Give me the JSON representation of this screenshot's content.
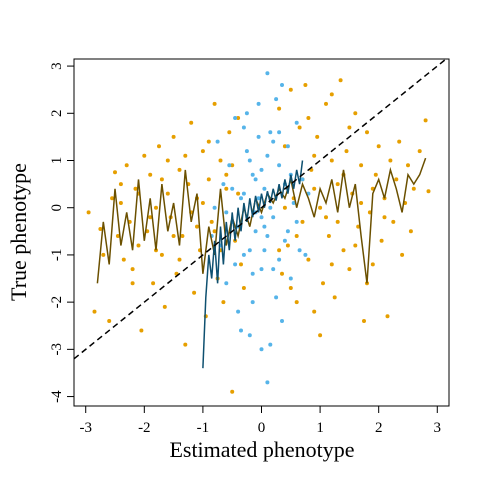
{
  "chart_data": {
    "type": "scatter",
    "title": "",
    "xlabel": "Estimated phenotype",
    "ylabel": "True phenotype",
    "xlim": [
      -3.2,
      3.2
    ],
    "ylim": [
      -4.2,
      3.15
    ],
    "x_ticks": [
      "-3",
      "-2",
      "-1",
      "0",
      "1",
      "2",
      "3"
    ],
    "y_ticks": [
      "-4",
      "-3",
      "-2",
      "-1",
      "0",
      "1",
      "2",
      "3"
    ],
    "grid": false,
    "legend": "none",
    "reference_line": {
      "style": "dashed",
      "color": "#000000",
      "slope": 1,
      "intercept": 0
    },
    "series": [
      {
        "kind": "points",
        "color": "#E69F00",
        "points": [
          [
            -2.95,
            -0.1
          ],
          [
            -2.85,
            -2.2
          ],
          [
            -2.75,
            -0.45
          ],
          [
            -2.7,
            -1.0
          ],
          [
            -2.6,
            -2.4
          ],
          [
            -2.55,
            0.2
          ],
          [
            -2.5,
            0.75
          ],
          [
            -2.45,
            -0.6
          ],
          [
            -2.4,
            0.5
          ],
          [
            -2.35,
            -1.1
          ],
          [
            -2.3,
            0.9
          ],
          [
            -2.25,
            -0.3
          ],
          [
            -2.2,
            -1.3
          ],
          [
            -2.15,
            0.4
          ],
          [
            -2.1,
            -0.8
          ],
          [
            -2.05,
            -2.6
          ],
          [
            -2.0,
            1.1
          ],
          [
            -1.95,
            -0.5
          ],
          [
            -1.9,
            0.7
          ],
          [
            -1.85,
            -1.6
          ],
          [
            -1.8,
            0.0
          ],
          [
            -1.75,
            1.3
          ],
          [
            -1.7,
            -1.0
          ],
          [
            -1.65,
            -2.1
          ],
          [
            -1.6,
            0.3
          ],
          [
            -1.55,
            -0.2
          ],
          [
            -1.5,
            1.5
          ],
          [
            -1.45,
            -1.4
          ],
          [
            -1.4,
            0.8
          ],
          [
            -1.35,
            -0.6
          ],
          [
            -1.3,
            -2.9
          ],
          [
            -1.25,
            0.5
          ],
          [
            -1.2,
            1.8
          ],
          [
            -1.15,
            -1.8
          ],
          [
            -1.1,
            0.2
          ],
          [
            -1.05,
            -0.9
          ],
          [
            -1.0,
            1.2
          ],
          [
            -0.95,
            -2.3
          ],
          [
            -0.9,
            0.6
          ],
          [
            -0.85,
            -0.3
          ],
          [
            -0.8,
            2.2
          ],
          [
            -0.75,
            -1.5
          ],
          [
            -0.7,
            1.0
          ],
          [
            -0.65,
            -2.0
          ],
          [
            -0.6,
            0.4
          ],
          [
            -0.55,
            1.6
          ],
          [
            -0.5,
            -3.9
          ],
          [
            -0.45,
            -0.7
          ],
          [
            -0.4,
            1.9
          ],
          [
            -0.35,
            -1.2
          ],
          [
            -2.4,
            0.1
          ],
          [
            -2.1,
            0.3
          ],
          [
            -1.9,
            -0.2
          ],
          [
            -1.7,
            0.6
          ],
          [
            -1.5,
            -0.6
          ],
          [
            -1.3,
            1.1
          ],
          [
            -1.1,
            -0.4
          ],
          [
            -0.9,
            1.4
          ],
          [
            -0.7,
            -0.9
          ],
          [
            -0.5,
            0.9
          ],
          [
            -1.2,
            -0.1
          ],
          [
            -1.0,
            0.1
          ],
          [
            -0.8,
            -0.5
          ],
          [
            -0.6,
            0.7
          ],
          [
            -1.6,
            1.0
          ],
          [
            -1.4,
            -1.1
          ],
          [
            -2.2,
            -1.6
          ],
          [
            -1.8,
            -0.9
          ],
          [
            -0.4,
            0.3
          ],
          [
            -0.3,
            -1.7
          ],
          [
            0.3,
            2.1
          ],
          [
            0.35,
            -1.4
          ],
          [
            0.4,
            1.3
          ],
          [
            0.45,
            -0.8
          ],
          [
            0.5,
            2.5
          ],
          [
            0.55,
            0.2
          ],
          [
            0.6,
            -2.0
          ],
          [
            0.65,
            1.7
          ],
          [
            0.7,
            -0.3
          ],
          [
            0.75,
            2.6
          ],
          [
            0.8,
            -1.1
          ],
          [
            0.85,
            0.8
          ],
          [
            0.9,
            -2.2
          ],
          [
            0.95,
            1.5
          ],
          [
            1.0,
            0.0
          ],
          [
            1.05,
            -1.6
          ],
          [
            1.1,
            2.2
          ],
          [
            1.15,
            -0.6
          ],
          [
            1.2,
            1.0
          ],
          [
            1.25,
            -1.9
          ],
          [
            1.3,
            0.5
          ],
          [
            1.35,
            2.7
          ],
          [
            1.4,
            -0.9
          ],
          [
            1.45,
            1.2
          ],
          [
            1.5,
            -1.3
          ],
          [
            1.55,
            0.3
          ],
          [
            1.6,
            2.0
          ],
          [
            1.65,
            -0.4
          ],
          [
            1.7,
            0.9
          ],
          [
            1.75,
            -2.4
          ],
          [
            1.8,
            1.6
          ],
          [
            1.85,
            -0.1
          ],
          [
            1.9,
            -1.2
          ],
          [
            1.95,
            0.7
          ],
          [
            2.0,
            1.3
          ],
          [
            2.05,
            -0.7
          ],
          [
            2.1,
            0.2
          ],
          [
            2.15,
            -2.3
          ],
          [
            2.2,
            1.0
          ],
          [
            2.25,
            -0.3
          ],
          [
            2.3,
            0.6
          ],
          [
            2.35,
            1.4
          ],
          [
            2.4,
            -1.0
          ],
          [
            2.45,
            0.1
          ],
          [
            2.5,
            0.9
          ],
          [
            2.55,
            -0.5
          ],
          [
            2.6,
            0.4
          ],
          [
            2.7,
            1.2
          ],
          [
            2.8,
            1.85
          ],
          [
            2.85,
            0.35
          ],
          [
            1.2,
            2.4
          ],
          [
            0.9,
            0.4
          ],
          [
            1.1,
            -0.2
          ],
          [
            1.4,
            0.7
          ],
          [
            1.6,
            -0.8
          ],
          [
            0.7,
            0.6
          ],
          [
            0.8,
            1.9
          ],
          [
            1.0,
            -2.7
          ],
          [
            1.3,
            -0.3
          ],
          [
            1.5,
            1.7
          ],
          [
            0.6,
            -0.6
          ],
          [
            0.9,
            1.1
          ],
          [
            1.7,
            0.1
          ],
          [
            1.9,
            0.4
          ],
          [
            2.1,
            -0.2
          ],
          [
            1.2,
            -1.2
          ],
          [
            0.5,
            -1.7
          ],
          [
            0.4,
            0.0
          ],
          [
            0.3,
            -0.9
          ],
          [
            1.8,
            -1.6
          ]
        ]
      },
      {
        "kind": "points",
        "color": "#56B4E9",
        "points": [
          [
            -0.75,
            1.4
          ],
          [
            -0.7,
            -0.8
          ],
          [
            -0.65,
            0.5
          ],
          [
            -0.6,
            -1.6
          ],
          [
            -0.55,
            0.9
          ],
          [
            -0.5,
            -0.3
          ],
          [
            -0.45,
            1.9
          ],
          [
            -0.4,
            -2.2
          ],
          [
            -0.35,
            0.2
          ],
          [
            -0.3,
            -1.0
          ],
          [
            -0.25,
            1.2
          ],
          [
            -0.2,
            -2.7
          ],
          [
            -0.15,
            0.7
          ],
          [
            -0.1,
            -0.5
          ],
          [
            -0.05,
            2.2
          ],
          [
            0.0,
            -1.3
          ],
          [
            0.05,
            0.4
          ],
          [
            0.1,
            -3.7
          ],
          [
            0.15,
            1.6
          ],
          [
            0.2,
            -0.2
          ],
          [
            0.25,
            -1.9
          ],
          [
            0.3,
            0.9
          ],
          [
            0.35,
            2.6
          ],
          [
            0.4,
            -0.7
          ],
          [
            0.45,
            1.3
          ],
          [
            0.5,
            -1.5
          ],
          [
            0.55,
            0.1
          ],
          [
            0.6,
            1.8
          ],
          [
            0.65,
            -0.9
          ],
          [
            0.7,
            0.6
          ],
          [
            -0.3,
            0.3
          ],
          [
            -0.2,
            1.0
          ],
          [
            -0.1,
            -0.1
          ],
          [
            0.0,
            0.8
          ],
          [
            0.1,
            -0.6
          ],
          [
            0.2,
            1.4
          ],
          [
            0.3,
            -1.1
          ],
          [
            -0.4,
            -0.4
          ],
          [
            0.4,
            0.5
          ],
          [
            0.0,
            -0.2
          ],
          [
            -0.05,
            1.5
          ],
          [
            0.05,
            -0.9
          ],
          [
            -0.15,
            -1.4
          ],
          [
            0.15,
            0.0
          ],
          [
            -0.25,
            2.0
          ],
          [
            0.25,
            2.3
          ],
          [
            0.1,
            2.85
          ],
          [
            -0.35,
            -2.6
          ],
          [
            0.35,
            -2.4
          ],
          [
            0.0,
            -3.0
          ],
          [
            -0.2,
            -0.9
          ],
          [
            0.2,
            -1.3
          ],
          [
            -0.1,
            0.6
          ],
          [
            0.1,
            1.1
          ],
          [
            -0.5,
            0.4
          ],
          [
            0.5,
            0.7
          ],
          [
            -0.6,
            -0.1
          ],
          [
            0.6,
            -0.3
          ],
          [
            -0.45,
            -1.2
          ],
          [
            0.45,
            -0.5
          ],
          [
            -0.3,
            1.7
          ],
          [
            0.3,
            1.6
          ],
          [
            -0.15,
            -2.0
          ],
          [
            0.15,
            -2.9
          ],
          [
            -0.05,
            0.2
          ],
          [
            0.05,
            -0.4
          ],
          [
            -0.8,
            0.0
          ],
          [
            -0.85,
            -0.6
          ],
          [
            0.8,
            0.3
          ],
          [
            0.75,
            -1.0
          ]
        ]
      },
      {
        "kind": "line",
        "color": "#6B5000",
        "points": [
          [
            -2.8,
            -1.6
          ],
          [
            -2.7,
            -0.3
          ],
          [
            -2.6,
            -1.2
          ],
          [
            -2.5,
            0.4
          ],
          [
            -2.4,
            -0.8
          ],
          [
            -2.3,
            -0.1
          ],
          [
            -2.2,
            -0.9
          ],
          [
            -2.1,
            0.6
          ],
          [
            -2.0,
            -0.7
          ],
          [
            -1.9,
            0.2
          ],
          [
            -1.8,
            -0.9
          ],
          [
            -1.7,
            0.5
          ],
          [
            -1.6,
            -0.5
          ],
          [
            -1.5,
            0.1
          ],
          [
            -1.4,
            -0.8
          ],
          [
            -1.3,
            0.8
          ],
          [
            -1.2,
            -0.3
          ],
          [
            -1.1,
            0.3
          ],
          [
            -1.0,
            -1.4
          ],
          [
            -0.9,
            -0.4
          ],
          [
            -0.8,
            -1.0
          ],
          [
            -0.7,
            0.4
          ],
          [
            -0.6,
            -0.8
          ],
          [
            -0.5,
            -0.2
          ],
          [
            -0.4,
            -0.6
          ],
          [
            -0.3,
            0.0
          ],
          [
            -0.2,
            -0.4
          ],
          [
            -0.1,
            0.2
          ],
          [
            0.0,
            -0.1
          ],
          [
            0.1,
            0.3
          ],
          [
            0.2,
            0.1
          ],
          [
            0.3,
            0.4
          ],
          [
            0.4,
            0.2
          ],
          [
            0.5,
            0.6
          ],
          [
            0.6,
            0.0
          ],
          [
            0.7,
            0.5
          ],
          [
            0.8,
            0.2
          ],
          [
            0.9,
            -0.2
          ],
          [
            1.0,
            0.4
          ],
          [
            1.1,
            0.1
          ],
          [
            1.2,
            0.6
          ],
          [
            1.3,
            -0.1
          ],
          [
            1.4,
            0.8
          ],
          [
            1.5,
            0.0
          ],
          [
            1.6,
            0.5
          ],
          [
            1.7,
            -0.6
          ],
          [
            1.8,
            -1.6
          ],
          [
            1.9,
            0.3
          ],
          [
            2.0,
            0.6
          ],
          [
            2.1,
            0.2
          ],
          [
            2.2,
            0.8
          ],
          [
            2.3,
            0.4
          ],
          [
            2.4,
            -0.1
          ],
          [
            2.5,
            0.7
          ],
          [
            2.6,
            0.5
          ],
          [
            2.7,
            0.7
          ],
          [
            2.8,
            1.05
          ]
        ]
      },
      {
        "kind": "line",
        "color": "#0E5070",
        "points": [
          [
            -1.0,
            -3.4
          ],
          [
            -0.95,
            -1.9
          ],
          [
            -0.9,
            -1.0
          ],
          [
            -0.85,
            -1.5
          ],
          [
            -0.8,
            -0.7
          ],
          [
            -0.75,
            -1.6
          ],
          [
            -0.7,
            -0.4
          ],
          [
            -0.65,
            -1.2
          ],
          [
            -0.6,
            -0.3
          ],
          [
            -0.55,
            -0.9
          ],
          [
            -0.5,
            -0.1
          ],
          [
            -0.45,
            -0.7
          ],
          [
            -0.4,
            0.0
          ],
          [
            -0.35,
            -0.5
          ],
          [
            -0.3,
            0.1
          ],
          [
            -0.25,
            -0.3
          ],
          [
            -0.2,
            0.2
          ],
          [
            -0.15,
            -0.2
          ],
          [
            -0.1,
            0.25
          ],
          [
            -0.05,
            -0.1
          ],
          [
            0.0,
            0.3
          ],
          [
            0.05,
            0.0
          ],
          [
            0.1,
            0.35
          ],
          [
            0.15,
            0.1
          ],
          [
            0.2,
            0.4
          ],
          [
            0.25,
            0.15
          ],
          [
            0.3,
            0.5
          ],
          [
            0.35,
            0.2
          ],
          [
            0.4,
            0.6
          ],
          [
            0.45,
            0.3
          ],
          [
            0.5,
            0.7
          ],
          [
            0.55,
            0.4
          ],
          [
            0.6,
            0.8
          ],
          [
            0.65,
            0.5
          ],
          [
            0.7,
            1.0
          ]
        ]
      }
    ]
  }
}
